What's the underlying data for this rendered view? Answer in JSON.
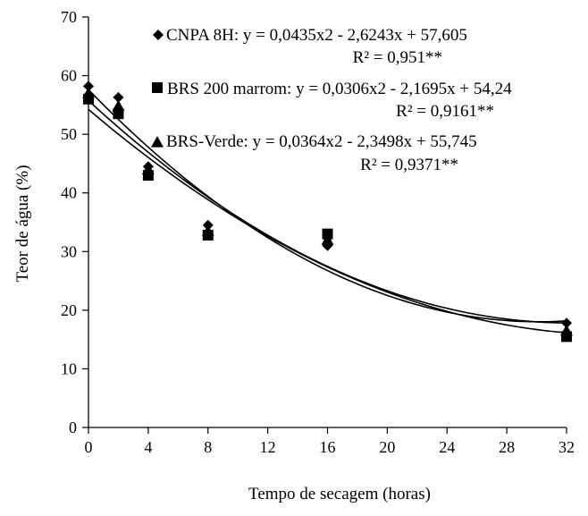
{
  "chart_data": {
    "type": "scatter",
    "xlabel": "Tempo de secagem  (horas)",
    "ylabel": "Teor de água (%)",
    "xlim": [
      0,
      32
    ],
    "ylim": [
      0,
      70
    ],
    "xticks": [
      0,
      4,
      8,
      12,
      16,
      20,
      24,
      28,
      32
    ],
    "yticks": [
      0,
      10,
      20,
      30,
      40,
      50,
      60,
      70
    ],
    "grid": false,
    "series": [
      {
        "name": "CNPA 8H",
        "marker": "diamond",
        "x": [
          0,
          2,
          4,
          8,
          16,
          32
        ],
        "y": [
          58.2,
          56.3,
          44.5,
          34.5,
          31.0,
          17.8
        ],
        "fit": {
          "a": 0.0435,
          "b": -2.6243,
          "c": 57.605
        },
        "equation": "y = 0,0435x2 - 2,6243x + 57,605",
        "r2_label": "R² = 0,951**"
      },
      {
        "name": "BRS 200 marrom",
        "marker": "square",
        "x": [
          0,
          2,
          4,
          8,
          16,
          32
        ],
        "y": [
          56.0,
          53.5,
          43.0,
          32.8,
          33.0,
          15.5
        ],
        "fit": {
          "a": 0.0306,
          "b": -2.1695,
          "c": 54.24
        },
        "equation": "y = 0,0306x2 - 2,1695x + 54,24",
        "r2_label": "R² = 0,9161**"
      },
      {
        "name": "BRS-Verde",
        "marker": "triangle",
        "x": [
          0,
          2,
          4,
          8,
          16,
          32
        ],
        "y": [
          57.0,
          54.8,
          44.0,
          33.5,
          32.0,
          16.5
        ],
        "fit": {
          "a": 0.0364,
          "b": -2.3498,
          "c": 55.745
        },
        "equation": "y = 0,0364x2 - 2,3498x + 55,745",
        "r2_label": "R² = 0,9371**"
      }
    ]
  }
}
